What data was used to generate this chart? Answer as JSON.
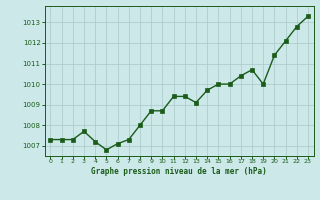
{
  "x": [
    0,
    1,
    2,
    3,
    4,
    5,
    6,
    7,
    8,
    9,
    10,
    11,
    12,
    13,
    14,
    15,
    16,
    17,
    18,
    19,
    20,
    21,
    22,
    23
  ],
  "y": [
    1007.3,
    1007.3,
    1007.3,
    1007.7,
    1007.2,
    1006.8,
    1007.1,
    1007.3,
    1008.0,
    1008.7,
    1008.7,
    1009.4,
    1009.4,
    1009.1,
    1009.7,
    1010.0,
    1010.0,
    1010.4,
    1010.7,
    1010.0,
    1011.4,
    1012.1,
    1012.8,
    1013.3
  ],
  "ylim": [
    1006.5,
    1013.8
  ],
  "yticks": [
    1007,
    1008,
    1009,
    1010,
    1011,
    1012,
    1013
  ],
  "xticks": [
    0,
    1,
    2,
    3,
    4,
    5,
    6,
    7,
    8,
    9,
    10,
    11,
    12,
    13,
    14,
    15,
    16,
    17,
    18,
    19,
    20,
    21,
    22,
    23
  ],
  "line_color": "#1a5c1a",
  "marker_color": "#1a5c1a",
  "bg_color": "#cce8e8",
  "grid_color": "#aac8c8",
  "xlabel": "Graphe pression niveau de la mer (hPa)",
  "xlabel_color": "#1a5c1a",
  "tick_color": "#1a5c1a",
  "spine_color": "#1a5c1a",
  "marker": "s",
  "markersize": 2.5,
  "linewidth": 1.0
}
